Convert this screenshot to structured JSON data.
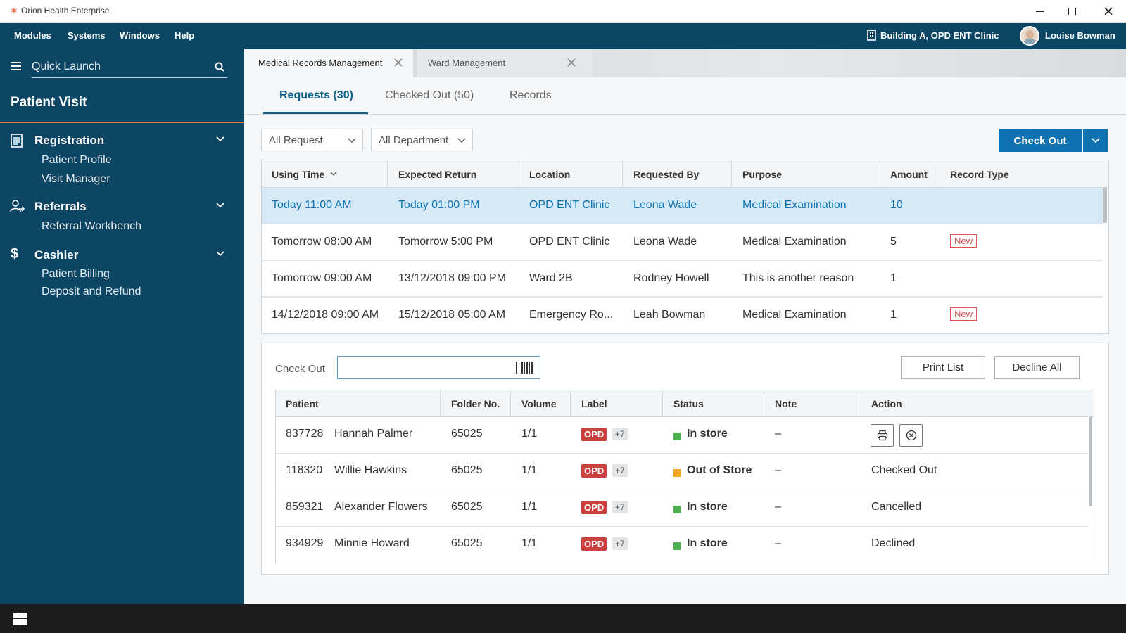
{
  "window": {
    "title": "Orion Health Enterprise",
    "icons": [
      "minimize-icon",
      "maximize-icon",
      "close-icon"
    ]
  },
  "menubar": {
    "items": [
      "Modules",
      "Systems",
      "Windows",
      "Help"
    ],
    "location": "Building A, OPD ENT Clinic",
    "user": "Louise Bowman"
  },
  "sidebar": {
    "quick_launch_placeholder": "Quick Launch",
    "section_title": "Patient Visit",
    "groups": [
      {
        "label": "Registration",
        "icon": "document-icon",
        "items": [
          "Patient Profile",
          "Visit Manager"
        ]
      },
      {
        "label": "Referrals",
        "icon": "referral-icon",
        "items": [
          "Referral Workbench"
        ]
      },
      {
        "label": "Cashier",
        "icon": "dollar-icon",
        "items": [
          "Patient Billing",
          "Deposit and Refund"
        ]
      }
    ]
  },
  "tabs": [
    {
      "label": "Medical Records Management",
      "active": true
    },
    {
      "label": "Ward Management",
      "active": false
    }
  ],
  "subtabs": [
    "Requests (30)",
    "Checked Out (50)",
    "Records"
  ],
  "filters": {
    "request": "All Request",
    "department": "All Department"
  },
  "actions": {
    "check_out": "Check Out"
  },
  "requests": {
    "columns": [
      "Using Time",
      "Expected Return",
      "Location",
      "Requested By",
      "Purpose",
      "Amount",
      "Record Type"
    ],
    "rows": [
      {
        "using": "Today 11:00 AM",
        "ret": "Today 01:00 PM",
        "loc": "OPD ENT Clinic",
        "by": "Leona Wade",
        "purpose": "Medical Examination",
        "amount": "10",
        "type": ""
      },
      {
        "using": "Tomorrow 08:00 AM",
        "ret": "Tomorrow 5:00 PM",
        "loc": "OPD ENT Clinic",
        "by": "Leona Wade",
        "purpose": "Medical Examination",
        "amount": "5",
        "type": "New"
      },
      {
        "using": "Tomorrow 09:00 AM",
        "ret": "13/12/2018 09:00 PM",
        "loc": "Ward 2B",
        "by": "Rodney Howell",
        "purpose": "This is another reason",
        "amount": "1",
        "type": ""
      },
      {
        "using": "14/12/2018 09:00 AM",
        "ret": "15/12/2018 05:00 AM",
        "loc": "Emergency Ro...",
        "by": "Leah Bowman",
        "purpose": "Medical Examination",
        "amount": "1",
        "type": "New"
      }
    ]
  },
  "checkout": {
    "label": "Check Out",
    "input_value": "",
    "print_list": "Print List",
    "decline_all": "Decline All",
    "columns": [
      "Patient",
      "Folder No.",
      "Volume",
      "Label",
      "Status",
      "Note",
      "Action"
    ],
    "rows": [
      {
        "id": "837728",
        "name": "Hannah Palmer",
        "folder": "65025",
        "volume": "1/1",
        "label": "OPD",
        "extra": "+7",
        "status": "In store",
        "status_color": "#4caf50",
        "note": "–",
        "action": ""
      },
      {
        "id": "118320",
        "name": "Willie Hawkins",
        "folder": "65025",
        "volume": "1/1",
        "label": "OPD",
        "extra": "+7",
        "status": "Out of Store",
        "status_color": "#f5a623",
        "note": "–",
        "action": "Checked Out"
      },
      {
        "id": "859321",
        "name": "Alexander Flowers",
        "folder": "65025",
        "volume": "1/1",
        "label": "OPD",
        "extra": "+7",
        "status": "In store",
        "status_color": "#4caf50",
        "note": "–",
        "action": "Cancelled"
      },
      {
        "id": "934929",
        "name": "Minnie Howard",
        "folder": "65025",
        "volume": "1/1",
        "label": "OPD",
        "extra": "+7",
        "status": "In store",
        "status_color": "#4caf50",
        "note": "–",
        "action": "Declined"
      }
    ]
  },
  "colors": {
    "primary": "#0e73b0",
    "nav": "#0d4664",
    "accent": "#e77f3c",
    "danger": "#c9423d"
  }
}
